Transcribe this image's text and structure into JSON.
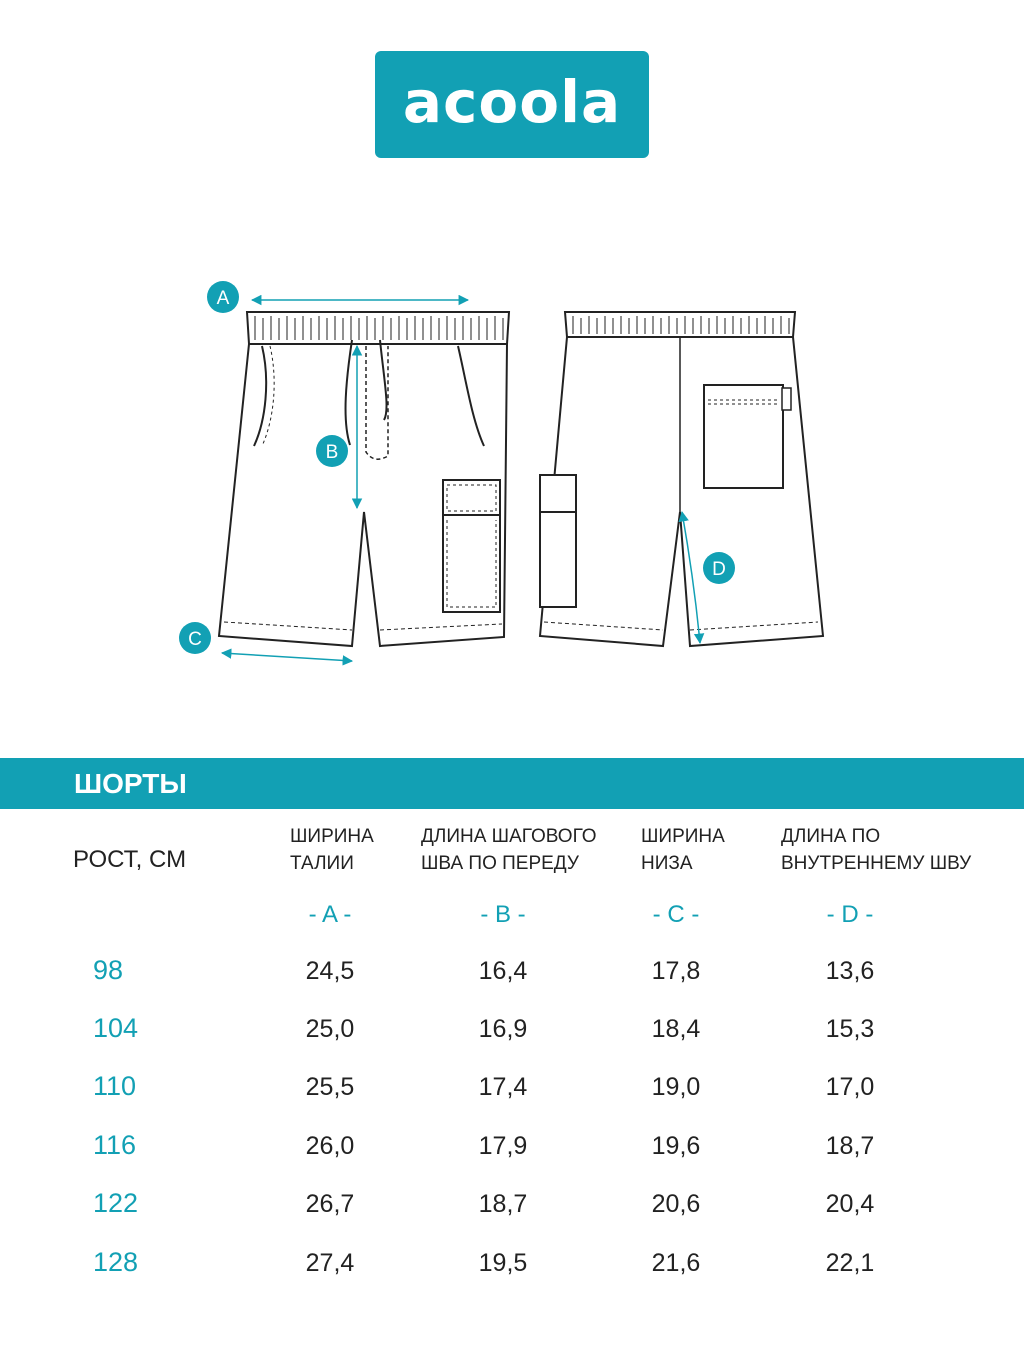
{
  "brand": {
    "logo_text": "acoola",
    "color": "#12a0b4"
  },
  "diagram": {
    "markers": [
      "A",
      "B",
      "C",
      "D"
    ]
  },
  "table": {
    "title": "ШОРТЫ",
    "height_header": "РОСТ, СМ",
    "columns": [
      {
        "label": "ШИРИНА\nТАЛИИ",
        "letter": "- A -"
      },
      {
        "label": "ДЛИНА ШАГОВОГО\nШВА ПО ПЕРЕДУ",
        "letter": "- B -"
      },
      {
        "label": "ШИРИНА\nНИЗА",
        "letter": "- C -"
      },
      {
        "label": "ДЛИНА ПО\nВНУТРЕННЕМУ ШВУ",
        "letter": "- D -"
      }
    ],
    "rows": [
      {
        "size": "98",
        "values": [
          "24,5",
          "16,4",
          "17,8",
          "13,6"
        ]
      },
      {
        "size": "104",
        "values": [
          "25,0",
          "16,9",
          "18,4",
          "15,3"
        ]
      },
      {
        "size": "110",
        "values": [
          "25,5",
          "17,4",
          "19,0",
          "17,0"
        ]
      },
      {
        "size": "116",
        "values": [
          "26,0",
          "17,9",
          "19,6",
          "18,7"
        ]
      },
      {
        "size": "122",
        "values": [
          "26,7",
          "18,7",
          "20,6",
          "20,4"
        ]
      },
      {
        "size": "128",
        "values": [
          "27,4",
          "19,5",
          "21,6",
          "22,1"
        ]
      }
    ]
  }
}
